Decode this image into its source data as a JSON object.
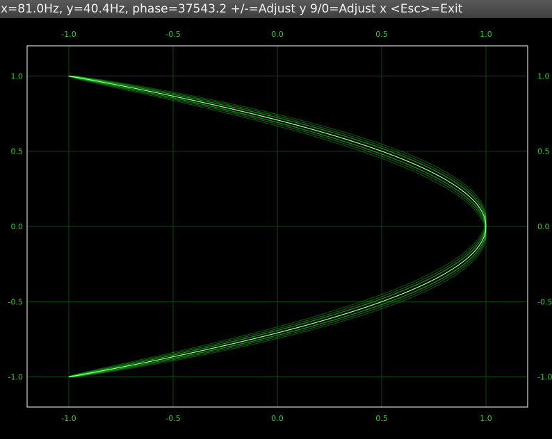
{
  "window": {
    "title": "x=81.0Hz, y=40.4Hz, phase=37543.2 +/-=Adjust y 9/0=Adjust x <Esc>=Exit"
  },
  "chart_data": {
    "type": "line",
    "title": "",
    "xlabel": "",
    "ylabel": "",
    "xlim": [
      -1.2,
      1.2
    ],
    "ylim": [
      -1.2,
      1.2
    ],
    "x_ticks": [
      "-1.0",
      "-0.5",
      "0.0",
      "0.5",
      "1.0"
    ],
    "y_ticks": [
      "1.0",
      "0.5",
      "0.0",
      "-0.5",
      "-1.0"
    ],
    "grid": true,
    "colors": {
      "background": "#000000",
      "trace": "#22ff22",
      "grid": "#0b4a0b",
      "frame": "#ffffff",
      "tick_label": "#2bd42b"
    },
    "series": [
      {
        "type": "lissajous",
        "x_freq_hz": 81.0,
        "y_freq_hz": 40.4,
        "phase": 37543.2,
        "x_amplitude": 1.0,
        "y_amplitude": 1.0
      }
    ]
  }
}
